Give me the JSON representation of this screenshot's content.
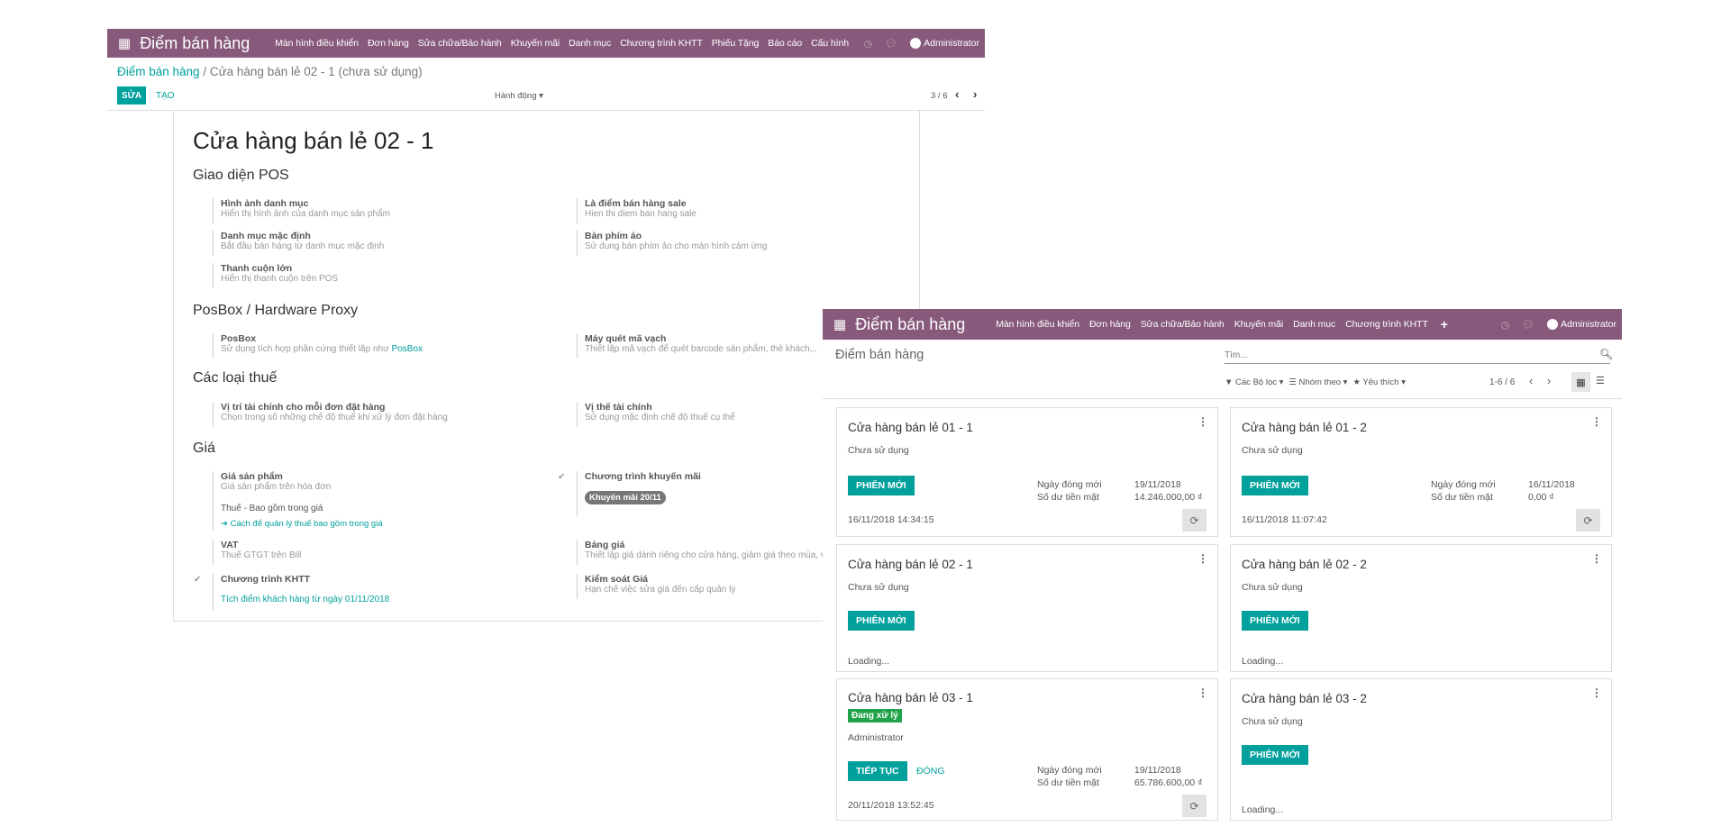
{
  "colors": {
    "brand": "#875a7b",
    "primary": "#00a09d",
    "badge_active": "#21a34a",
    "tag": "#777777"
  },
  "back": {
    "nav": {
      "apps_icon": "grid-icon",
      "brand": "Điểm bán hàng",
      "menu": [
        "Màn hình điều khiển",
        "Đơn hàng",
        "Sửa chữa/Bảo hành",
        "Khuyến mãi",
        "Danh mục",
        "Chương trình KHTT",
        "Phiếu Tặng",
        "Báo cáo",
        "Cấu hình"
      ],
      "user": "Administrator"
    },
    "breadcrumb": {
      "parent": "Điểm bán hàng",
      "sep": "/",
      "current": "Cửa hàng bán lẻ 02 - 1 (chưa sử dụng)"
    },
    "edit": "SỬA",
    "create": "TẠO",
    "action": "Hành động ▾",
    "pager": "3 / 6",
    "title": "Cửa hàng bán lẻ 02 - 1",
    "sections": {
      "pos": "Giao diện POS",
      "posbox": "PosBox / Hardware Proxy",
      "tax": "Các loại thuế",
      "price": "Giá"
    },
    "items": {
      "cat_img": {
        "l": "Hình ảnh danh mục",
        "h": "Hiển thị hình ảnh của danh mục sản phẩm"
      },
      "sale_pos": {
        "l": "Là điểm bán hàng sale",
        "h": "Hien thi diem ban hang sale"
      },
      "def_cat": {
        "l": "Danh mục mặc định",
        "h": "Bắt đầu bán hàng từ danh mục mặc định"
      },
      "vkb": {
        "l": "Bàn phím ảo",
        "h": "Sử dụng bàn phím ảo cho màn hình cảm ứng"
      },
      "scroll": {
        "l": "Thanh cuộn lớn",
        "h": "Hiển thị thanh cuộn trên POS"
      },
      "posbox": {
        "l": "PosBox",
        "h": "Sử dụng tích hợp phần cứng thiết lập như",
        "link": "PosBox"
      },
      "barcode": {
        "l": "Máy quét mã vạch",
        "h": "Thiết lập mã vạch để quét barcode sản phẩm, thẻ khách,.."
      },
      "fpos": {
        "l": "Vị trí tài chính cho mỗi đơn đặt hàng",
        "h": "Chọn trong số những chế độ thuế khi xử lý đơn đặt hàng"
      },
      "fpos_def": {
        "l": "Vị thế tài chính",
        "h": "Sử dụng mặc định chế độ thuế cụ thể"
      },
      "price": {
        "l": "Giá sản phẩm",
        "h": "Giá sản phẩm trên hóa đơn",
        "tax": "Thuế - Bao gồm trong giá",
        "link": "➔ Cách để quản lý thuế bao gồm trong giá"
      },
      "promo": {
        "l": "Chương trình khuyến mãi",
        "tag": "Khuyến mãi 20/11"
      },
      "vat": {
        "l": "VAT",
        "h": "Thuế GTGT trên Bill"
      },
      "pricelist": {
        "l": "Bảng giá",
        "h": "Thiết lập giá dành riêng cho cửa hàng, giảm giá theo mùa, v.v"
      },
      "loyalty": {
        "l": "Chương trình KHTT",
        "link": "Tích điểm khách hàng từ ngày 01/11/2018"
      },
      "price_ctrl": {
        "l": "Kiểm soát Giá",
        "h": "Hạn chế việc sửa giá đến cấp quản lý"
      }
    },
    "check": "✔"
  },
  "front": {
    "nav": {
      "brand": "Điểm bán hàng",
      "menu": [
        "Màn hình điều khiển",
        "Đơn hàng",
        "Sửa chữa/Bảo hành",
        "Khuyến mãi",
        "Danh mục",
        "Chương trình KHTT"
      ],
      "plus": "+",
      "user": "Administrator"
    },
    "title": "Điểm bán hàng",
    "search_placeholder": "Tìm...",
    "filters": "▼ Các Bộ lọc ▾",
    "groupby": "☰ Nhóm theo ▾",
    "favorites": "★ Yêu thích ▾",
    "pager": "1-6 / 6",
    "cards": [
      {
        "title": "Cửa hàng bán lẻ 01 - 1",
        "status": "Chưa sử dụng",
        "buttons": [
          "PHIÊN MỚI"
        ],
        "stats": [
          [
            "Ngày đóng mới",
            "19/11/2018"
          ],
          [
            "Số dư tiền mặt",
            "14.246.000,00 ₫"
          ]
        ],
        "footer": "16/11/2018 14:34:15"
      },
      {
        "title": "Cửa hàng bán lẻ 01 - 2",
        "status": "Chưa sử dụng",
        "buttons": [
          "PHIÊN MỚI"
        ],
        "stats": [
          [
            "Ngày đóng mới",
            "16/11/2018"
          ],
          [
            "Số dư tiền mặt",
            "0,00 ₫"
          ]
        ],
        "footer": "16/11/2018 11:07:42"
      },
      {
        "title": "Cửa hàng bán lẻ 02 - 1",
        "status": "Chưa sử dụng",
        "buttons": [
          "PHIÊN MỚI"
        ],
        "loading": "Loading..."
      },
      {
        "title": "Cửa hàng bán lẻ 02 - 2",
        "status": "Chưa sử dụng",
        "buttons": [
          "PHIÊN MỚI"
        ],
        "loading": "Loading..."
      },
      {
        "title": "Cửa hàng bán lẻ 03 - 1",
        "badge": "Đang xử lý",
        "status": "Administrator",
        "buttons": [
          "TIẾP TỤC",
          "ĐÓNG"
        ],
        "stats": [
          [
            "Ngày đóng mới",
            "19/11/2018"
          ],
          [
            "Số dư tiền mặt",
            "65.786.600,00 ₫"
          ]
        ],
        "footer": "20/11/2018 13:52:45"
      },
      {
        "title": "Cửa hàng bán lẻ 03 - 2",
        "status": "Chưa sử dụng",
        "buttons": [
          "PHIÊN MỚI"
        ],
        "loading": "Loading..."
      }
    ]
  }
}
